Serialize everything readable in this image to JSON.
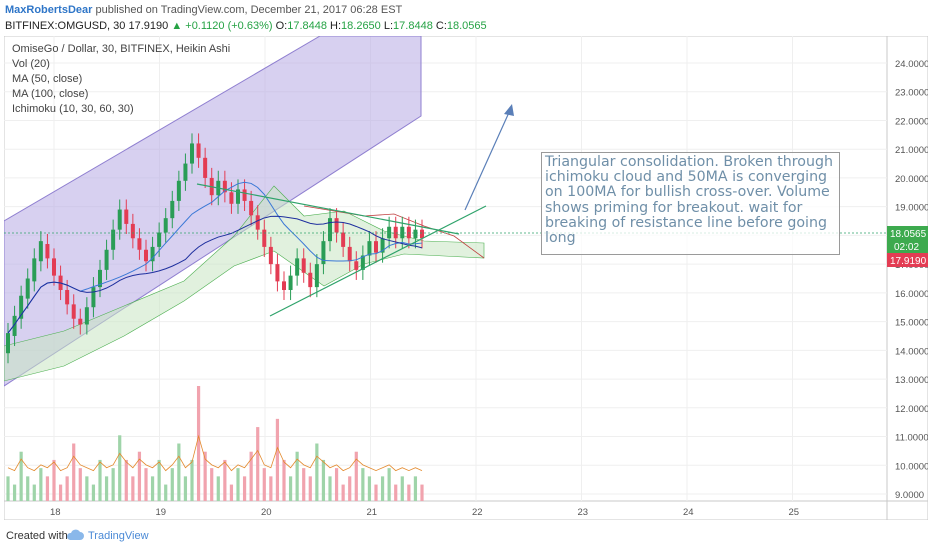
{
  "header": {
    "author": "MaxRobertsDear",
    "published": "published on TradingView.com, December 21, 2017 06:28 EST",
    "symbol": "BITFINEX:OMGUSD, 30",
    "last": "17.9190",
    "change_arrow": "▲",
    "change": "+0.1120 (+0.63%)",
    "o_label": "O:",
    "o": "17.8448",
    "h_label": "H:",
    "h": "18.2650",
    "l_label": "L:",
    "l": "17.8448",
    "c_label": "C:",
    "c": "18.0565"
  },
  "legend": {
    "title": "OmiseGo / Dollar, 30, BITFINEX, Heikin Ashi",
    "vol": "Vol (20)",
    "ma50": "MA (50, close)",
    "ma100": "MA (100, close)",
    "ichimoku": "Ichimoku (10, 30, 60, 30)"
  },
  "annotation": {
    "text": "Triangular consolidation. Broken through ichimoku cloud and 50MA is converging on 100MA for bullish cross-over. Volume shows priming for breakout. wait for breaking of resistance line before going long"
  },
  "price_tags": {
    "last_close": "18.0565",
    "countdown": "02:02",
    "open": "17.9190"
  },
  "footer": {
    "created": "Created with",
    "brand": "TradingView"
  },
  "colors": {
    "up": "#2a9d56",
    "down": "#e33c53",
    "channel": "#9f8fd6",
    "ma50": "#3a78d6",
    "ma100": "#1e2f9e",
    "cloud_red": "#c04040",
    "cloud_green": "#4caf50"
  },
  "chart_data": {
    "type": "candlestick",
    "x_ticks": [
      "18",
      "19",
      "20",
      "21",
      "22",
      "23",
      "24",
      "25"
    ],
    "y_ticks": [
      "9.0000",
      "10.0000",
      "11.0000",
      "12.0000",
      "13.0000",
      "14.0000",
      "15.0000",
      "16.0000",
      "17.0000",
      "18.0000",
      "19.0000",
      "20.0000",
      "21.0000",
      "22.0000",
      "23.0000",
      "24.0000"
    ],
    "ylim": [
      8.6,
      24.8
    ],
    "candles": [
      [
        13.9,
        14.6
      ],
      [
        14.5,
        15.2
      ],
      [
        15.1,
        15.9
      ],
      [
        15.8,
        16.5
      ],
      [
        16.4,
        17.2
      ],
      [
        17.1,
        17.8
      ],
      [
        17.7,
        17.2
      ],
      [
        17.2,
        16.6
      ],
      [
        16.6,
        16.1
      ],
      [
        16.1,
        15.6
      ],
      [
        15.6,
        15.1
      ],
      [
        15.1,
        14.9
      ],
      [
        14.9,
        15.5
      ],
      [
        15.5,
        16.2
      ],
      [
        16.2,
        16.8
      ],
      [
        16.8,
        17.5
      ],
      [
        17.5,
        18.2
      ],
      [
        18.2,
        18.9
      ],
      [
        18.9,
        18.4
      ],
      [
        18.4,
        17.9
      ],
      [
        17.9,
        17.5
      ],
      [
        17.5,
        17.1
      ],
      [
        17.1,
        17.6
      ],
      [
        17.6,
        18.1
      ],
      [
        18.1,
        18.6
      ],
      [
        18.6,
        19.2
      ],
      [
        19.2,
        19.9
      ],
      [
        19.9,
        20.5
      ],
      [
        20.5,
        21.2
      ],
      [
        21.2,
        20.7
      ],
      [
        20.7,
        20.0
      ],
      [
        20.0,
        19.4
      ],
      [
        19.4,
        19.9
      ],
      [
        19.9,
        19.5
      ],
      [
        19.5,
        19.1
      ],
      [
        19.1,
        19.6
      ],
      [
        19.6,
        19.2
      ],
      [
        19.2,
        18.7
      ],
      [
        18.7,
        18.2
      ],
      [
        18.2,
        17.6
      ],
      [
        17.6,
        17.0
      ],
      [
        17.0,
        16.4
      ],
      [
        16.4,
        16.1
      ],
      [
        16.1,
        16.6
      ],
      [
        16.6,
        17.2
      ],
      [
        17.2,
        16.7
      ],
      [
        16.7,
        16.2
      ],
      [
        16.2,
        17.0
      ],
      [
        17.0,
        17.8
      ],
      [
        17.8,
        18.6
      ],
      [
        18.6,
        18.1
      ],
      [
        18.1,
        17.6
      ],
      [
        17.6,
        17.1
      ],
      [
        17.1,
        16.8
      ],
      [
        16.8,
        17.3
      ],
      [
        17.3,
        17.8
      ],
      [
        17.8,
        17.4
      ],
      [
        17.4,
        17.9
      ],
      [
        17.9,
        18.3
      ],
      [
        18.3,
        17.9
      ],
      [
        17.9,
        18.3
      ],
      [
        18.3,
        17.9
      ],
      [
        17.9,
        18.2
      ],
      [
        18.2,
        17.9
      ]
    ],
    "volume": [
      3,
      2,
      6,
      3,
      2,
      4,
      3,
      5,
      2,
      3,
      7,
      4,
      3,
      2,
      5,
      3,
      4,
      8,
      5,
      3,
      6,
      4,
      3,
      5,
      2,
      4,
      7,
      3,
      5,
      14,
      6,
      4,
      3,
      5,
      2,
      4,
      3,
      6,
      9,
      4,
      3,
      10,
      5,
      3,
      6,
      4,
      3,
      7,
      5,
      3,
      4,
      2,
      3,
      6,
      4,
      3,
      2,
      3,
      4,
      2,
      3,
      2,
      3,
      2
    ],
    "series": [
      {
        "name": "MA (50, close)"
      },
      {
        "name": "MA (100, close)"
      },
      {
        "name": "Ichimoku (10, 30, 60, 30)"
      },
      {
        "name": "Vol (20)"
      }
    ]
  }
}
